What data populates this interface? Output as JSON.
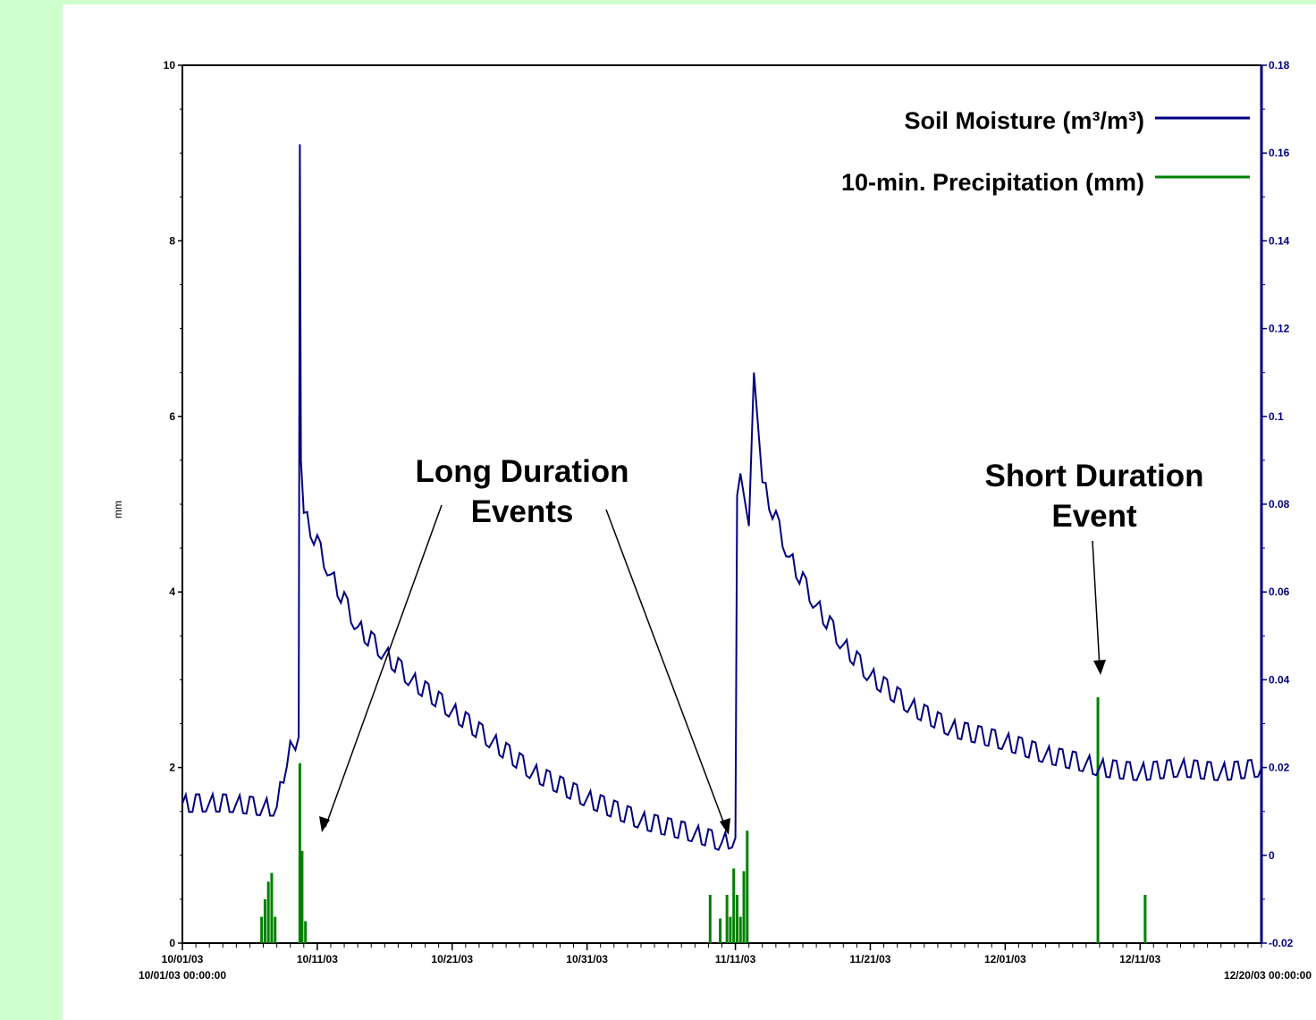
{
  "chart_data": {
    "type": "line",
    "ylabel": "mm",
    "y2label": "",
    "ylim": [
      0,
      10
    ],
    "y2lim": [
      -0.02,
      0.18
    ],
    "yticks": [
      "0",
      "2",
      "4",
      "6",
      "8",
      "10"
    ],
    "y2ticks": [
      "-0.02",
      "0",
      "0.02",
      "0.04",
      "0.06",
      "0.08",
      "0.1",
      "0.12",
      "0.14",
      "0.16",
      "0.18"
    ],
    "xlim": [
      "10/01/03 00:00:00",
      "12/20/03 00:00:00"
    ],
    "xrange_labels": {
      "start": "10/01/03 00:00:00",
      "end": "12/20/03 00:00:00"
    },
    "xtick_labels": [
      "10/01/03",
      "10/11/03",
      "10/21/03",
      "10/31/03",
      "11/11/03",
      "11/21/03",
      "12/01/03",
      "12/11/03"
    ],
    "legend": [
      {
        "name": "Soil Moisture (m³/m³)",
        "color": "#000080"
      },
      {
        "name": "10-min. Precipitation (mm)",
        "color": "#008000"
      }
    ],
    "legend_placement": "top-right",
    "annotations": [
      {
        "lines": [
          "Long Duration",
          "Events"
        ]
      },
      {
        "lines": [
          "Short Duration",
          "Event"
        ]
      }
    ],
    "series": [
      {
        "name": "Soil Moisture (m³/m³)",
        "axis": "right",
        "color": "#000080",
        "points": [
          [
            "10/01/03",
            0.0118
          ],
          [
            "10/03/03",
            0.012
          ],
          [
            "10/05/03",
            0.0118
          ],
          [
            "10/07/03",
            0.011
          ],
          [
            "10/08/03",
            0.011
          ],
          [
            "10/09/03",
            0.026
          ],
          [
            "10/09/12",
            0.024
          ],
          [
            "10/09/18",
            0.027
          ],
          [
            "10/09/20",
            0.162
          ],
          [
            "10/09/22",
            0.09
          ],
          [
            "10/10/03",
            0.078
          ],
          [
            "10/12/03",
            0.064
          ],
          [
            "10/14/03",
            0.052
          ],
          [
            "10/16/03",
            0.046
          ],
          [
            "10/18/03",
            0.04
          ],
          [
            "10/21/03",
            0.033
          ],
          [
            "10/24/03",
            0.026
          ],
          [
            "10/27/03",
            0.019
          ],
          [
            "10/31/03",
            0.013
          ],
          [
            "11/04/03",
            0.008
          ],
          [
            "11/08/03",
            0.005
          ],
          [
            "11/10/03",
            0.003
          ],
          [
            "11/11/03",
            0.004
          ],
          [
            "11/11/06",
            0.082
          ],
          [
            "11/11/12",
            0.087
          ],
          [
            "11/12/03",
            0.075
          ],
          [
            "11/12/12",
            0.11
          ],
          [
            "11/13/03",
            0.085
          ],
          [
            "11/15/03",
            0.068
          ],
          [
            "11/17/03",
            0.057
          ],
          [
            "11/19/03",
            0.048
          ],
          [
            "11/21/03",
            0.041
          ],
          [
            "11/24/03",
            0.034
          ],
          [
            "11/27/03",
            0.029
          ],
          [
            "12/01/03",
            0.026
          ],
          [
            "12/04/03",
            0.023
          ],
          [
            "12/07/03",
            0.021
          ],
          [
            "12/08/03",
            0.02
          ],
          [
            "12/11/03",
            0.019
          ],
          [
            "12/14/03",
            0.02
          ],
          [
            "12/17/03",
            0.019
          ],
          [
            "12/20/03",
            0.02
          ]
        ]
      },
      {
        "name": "10-min. Precipitation (mm)",
        "axis": "left",
        "color": "#008000",
        "points": [
          [
            "10/07/00",
            0.3
          ],
          [
            "10/07/06",
            0.5
          ],
          [
            "10/07/12",
            0.7
          ],
          [
            "10/07/18",
            0.8
          ],
          [
            "10/08/00",
            0.3
          ],
          [
            "10/09/20",
            2.05
          ],
          [
            "10/10/00",
            1.05
          ],
          [
            "10/10/06",
            0.25
          ],
          [
            "11/09/06",
            0.55
          ],
          [
            "11/10/00",
            0.28
          ],
          [
            "11/10/12",
            0.55
          ],
          [
            "11/10/18",
            0.3
          ],
          [
            "11/11/00",
            0.85
          ],
          [
            "11/11/06",
            0.55
          ],
          [
            "11/11/12",
            0.3
          ],
          [
            "11/11/18",
            0.82
          ],
          [
            "11/12/00",
            1.28
          ],
          [
            "12/08/00",
            2.8
          ],
          [
            "12/11/12",
            0.55
          ]
        ]
      }
    ]
  }
}
